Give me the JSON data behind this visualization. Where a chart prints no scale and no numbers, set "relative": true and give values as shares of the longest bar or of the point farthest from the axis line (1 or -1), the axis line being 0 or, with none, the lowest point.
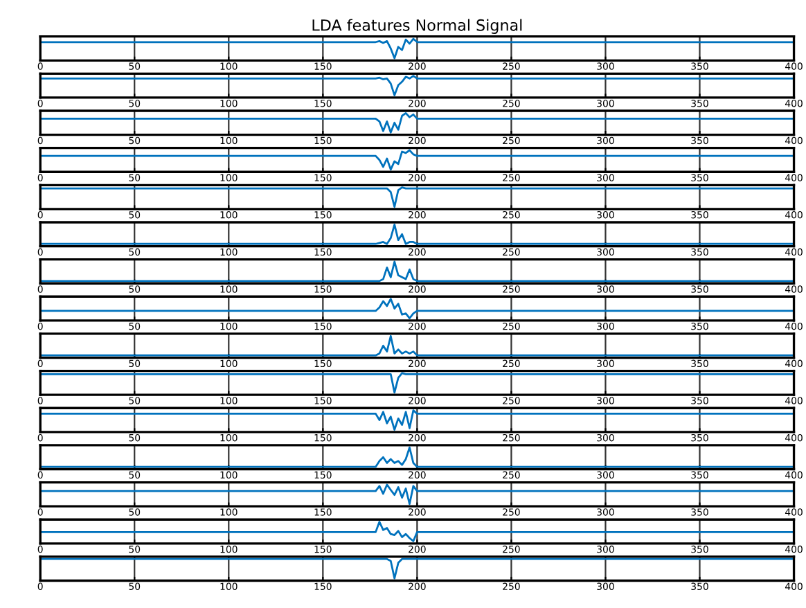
{
  "chart_data": [
    {
      "type": "line",
      "title": "LDA features Normal Signal",
      "relative": true,
      "color": "#0072bd",
      "xlim": [
        0,
        400
      ],
      "xticks": [
        0,
        50,
        100,
        150,
        200,
        250,
        300,
        350,
        400
      ],
      "grid": "x",
      "x": [
        0,
        178,
        180,
        182,
        184,
        186,
        188,
        190,
        192,
        194,
        196,
        198,
        200,
        400
      ],
      "values": [
        0.83,
        0.83,
        0.88,
        0.79,
        0.88,
        0.5,
        0,
        0.58,
        0.42,
        0.96,
        0.75,
        1,
        0.83,
        0.83
      ]
    },
    {
      "type": "line",
      "relative": true,
      "color": "#0072bd",
      "xlim": [
        0,
        400
      ],
      "xticks": [
        0,
        50,
        100,
        150,
        200,
        250,
        300,
        350,
        400
      ],
      "grid": "x",
      "x": [
        0,
        178,
        180,
        182,
        184,
        186,
        188,
        190,
        192,
        194,
        196,
        198,
        200,
        400
      ],
      "values": [
        0.87,
        0.87,
        0.91,
        0.83,
        0.87,
        0.61,
        0,
        0.52,
        0.7,
        0.96,
        0.87,
        1,
        0.87,
        0.87
      ]
    },
    {
      "type": "line",
      "relative": true,
      "color": "#0072bd",
      "xlim": [
        0,
        400
      ],
      "xticks": [
        0,
        50,
        100,
        150,
        200,
        250,
        300,
        350,
        400
      ],
      "grid": "x",
      "x": [
        0,
        178,
        180,
        182,
        184,
        186,
        188,
        190,
        192,
        194,
        196,
        198,
        200,
        400
      ],
      "values": [
        0.71,
        0.71,
        0.57,
        0.07,
        0.57,
        0,
        0.5,
        0.14,
        0.86,
        1,
        0.79,
        0.93,
        0.71,
        0.71
      ]
    },
    {
      "type": "line",
      "relative": true,
      "color": "#0072bd",
      "xlim": [
        0,
        400
      ],
      "xticks": [
        0,
        50,
        100,
        150,
        200,
        250,
        300,
        350,
        400
      ],
      "grid": "x",
      "x": [
        0,
        178,
        180,
        182,
        184,
        186,
        188,
        190,
        192,
        194,
        196,
        198,
        200,
        400
      ],
      "values": [
        0.71,
        0.71,
        0.5,
        0.14,
        0.57,
        0,
        0.43,
        0.29,
        0.93,
        0.86,
        1,
        0.79,
        0.71,
        0.71
      ]
    },
    {
      "type": "line",
      "relative": true,
      "color": "#0072bd",
      "xlim": [
        0,
        400
      ],
      "xticks": [
        0,
        50,
        100,
        150,
        200,
        250,
        300,
        350,
        400
      ],
      "grid": "x",
      "x": [
        0,
        178,
        180,
        182,
        184,
        186,
        188,
        190,
        192,
        194,
        196,
        198,
        200,
        400
      ],
      "values": [
        0.95,
        0.95,
        0.95,
        0.95,
        0.95,
        0.76,
        0,
        0.86,
        1,
        0.95,
        0.95,
        0.95,
        0.95,
        0.95
      ]
    },
    {
      "type": "line",
      "relative": true,
      "color": "#0072bd",
      "xlim": [
        0,
        400
      ],
      "xticks": [
        0,
        50,
        100,
        150,
        200,
        250,
        300,
        350,
        400
      ],
      "grid": "x",
      "x": [
        0,
        178,
        180,
        182,
        184,
        186,
        188,
        190,
        192,
        194,
        196,
        198,
        200,
        400
      ],
      "values": [
        0,
        0,
        0.05,
        0.1,
        0,
        0.3,
        1,
        0.2,
        0.5,
        0,
        0.1,
        0.1,
        0,
        0
      ]
    },
    {
      "type": "line",
      "relative": true,
      "color": "#0072bd",
      "xlim": [
        0,
        400
      ],
      "xticks": [
        0,
        50,
        100,
        150,
        200,
        250,
        300,
        350,
        400
      ],
      "grid": "x",
      "x": [
        0,
        178,
        180,
        182,
        184,
        186,
        188,
        190,
        192,
        194,
        196,
        198,
        200,
        400
      ],
      "values": [
        0,
        0,
        0,
        0.1,
        0.7,
        0.2,
        1,
        0.3,
        0.2,
        0.1,
        0.6,
        0.1,
        0,
        0
      ]
    },
    {
      "type": "line",
      "relative": true,
      "color": "#0072bd",
      "xlim": [
        0,
        400
      ],
      "xticks": [
        0,
        50,
        100,
        150,
        200,
        250,
        300,
        350,
        400
      ],
      "grid": "x",
      "x": [
        0,
        178,
        180,
        182,
        184,
        186,
        188,
        190,
        192,
        194,
        196,
        198,
        200,
        400
      ],
      "values": [
        0.38,
        0.38,
        0.56,
        0.88,
        0.63,
        1,
        0.5,
        0.75,
        0.19,
        0.25,
        0,
        0.25,
        0.38,
        0.38
      ]
    },
    {
      "type": "line",
      "relative": true,
      "color": "#0072bd",
      "xlim": [
        0,
        400
      ],
      "xticks": [
        0,
        50,
        100,
        150,
        200,
        250,
        300,
        350,
        400
      ],
      "grid": "x",
      "x": [
        0,
        178,
        180,
        182,
        184,
        186,
        188,
        190,
        192,
        194,
        196,
        198,
        200,
        400
      ],
      "values": [
        0,
        0,
        0.1,
        0.5,
        0.2,
        1,
        0.1,
        0.3,
        0.1,
        0.2,
        0.1,
        0.2,
        0,
        0
      ]
    },
    {
      "type": "line",
      "relative": true,
      "color": "#0072bd",
      "xlim": [
        0,
        400
      ],
      "xticks": [
        0,
        50,
        100,
        150,
        200,
        250,
        300,
        350,
        400
      ],
      "grid": "x",
      "x": [
        0,
        178,
        180,
        182,
        184,
        186,
        188,
        190,
        192,
        194,
        196,
        198,
        200,
        400
      ],
      "values": [
        0.95,
        0.95,
        0.95,
        0.95,
        0.95,
        0.95,
        0,
        0.76,
        1,
        0.95,
        0.95,
        0.95,
        0.95,
        0.95
      ]
    },
    {
      "type": "line",
      "relative": true,
      "color": "#0072bd",
      "xlim": [
        0,
        400
      ],
      "xticks": [
        0,
        50,
        100,
        150,
        200,
        250,
        300,
        350,
        400
      ],
      "grid": "x",
      "x": [
        0,
        178,
        180,
        182,
        184,
        186,
        188,
        190,
        192,
        194,
        196,
        198,
        200,
        400
      ],
      "values": [
        0.83,
        0.83,
        0.5,
        0.92,
        0.33,
        0.67,
        0,
        0.58,
        0.25,
        0.92,
        0.08,
        1,
        0.83,
        0.83
      ]
    },
    {
      "type": "line",
      "relative": true,
      "color": "#0072bd",
      "xlim": [
        0,
        400
      ],
      "xticks": [
        0,
        50,
        100,
        150,
        200,
        250,
        300,
        350,
        400
      ],
      "grid": "x",
      "x": [
        0,
        178,
        180,
        182,
        184,
        186,
        188,
        190,
        192,
        194,
        196,
        198,
        200,
        400
      ],
      "values": [
        0,
        0,
        0.3,
        0.5,
        0.2,
        0.4,
        0.2,
        0.3,
        0.1,
        0.4,
        1,
        0.2,
        0,
        0
      ]
    },
    {
      "type": "line",
      "relative": true,
      "color": "#0072bd",
      "xlim": [
        0,
        400
      ],
      "xticks": [
        0,
        50,
        100,
        150,
        200,
        250,
        300,
        350,
        400
      ],
      "grid": "x",
      "x": [
        0,
        178,
        180,
        182,
        184,
        186,
        188,
        190,
        192,
        194,
        196,
        198,
        200,
        400
      ],
      "values": [
        0.67,
        0.67,
        0.93,
        0.53,
        1,
        0.73,
        0.47,
        0.87,
        0.33,
        0.8,
        0,
        0.93,
        0.67,
        0.67
      ]
    },
    {
      "type": "line",
      "relative": true,
      "color": "#0072bd",
      "xlim": [
        0,
        400
      ],
      "xticks": [
        0,
        50,
        100,
        150,
        200,
        250,
        300,
        350,
        400
      ],
      "grid": "x",
      "x": [
        0,
        178,
        180,
        182,
        184,
        186,
        188,
        190,
        192,
        194,
        196,
        198,
        200,
        400
      ],
      "values": [
        0.47,
        0.47,
        1,
        0.58,
        0.68,
        0.37,
        0.32,
        0.53,
        0.21,
        0.37,
        0.16,
        0,
        0.47,
        0.47
      ]
    },
    {
      "type": "line",
      "relative": true,
      "color": "#0072bd",
      "xlim": [
        0,
        400
      ],
      "xticks": [
        0,
        50,
        100,
        150,
        200,
        250,
        300,
        350,
        400
      ],
      "grid": "x",
      "x": [
        0,
        178,
        180,
        182,
        184,
        186,
        188,
        190,
        192,
        194,
        196,
        198,
        200,
        400
      ],
      "values": [
        1,
        1,
        1,
        1,
        1,
        0.9,
        0,
        0.8,
        1,
        1,
        1,
        1,
        1,
        1
      ]
    }
  ]
}
